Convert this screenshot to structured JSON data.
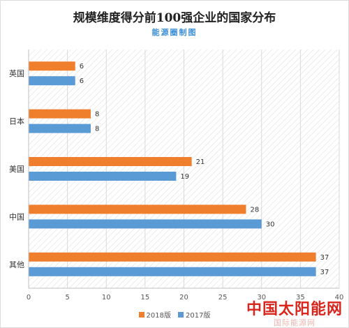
{
  "title": "规模维度得分前100强企业的国家分布",
  "subtitle": "能源圈制图",
  "watermark": {
    "main": "中国太阳能网",
    "sub": "国际能源网"
  },
  "legend": {
    "items": [
      {
        "label": "2018版",
        "color": "#f07f2d"
      },
      {
        "label": "2017版",
        "color": "#5b9bd5"
      }
    ]
  },
  "chart_data": {
    "type": "bar",
    "orientation": "horizontal",
    "categories": [
      "英国",
      "日本",
      "美国",
      "中国",
      "其他"
    ],
    "series": [
      {
        "name": "2018版",
        "values": [
          6,
          8,
          21,
          28,
          37
        ],
        "color": "#f07f2d"
      },
      {
        "name": "2017版",
        "values": [
          6,
          8,
          19,
          30,
          37
        ],
        "color": "#5b9bd5"
      }
    ],
    "xlim": [
      0,
      40
    ],
    "xticks": [
      0,
      5,
      10,
      15,
      20,
      25,
      30,
      35,
      40
    ],
    "grid": true,
    "legend_position": "bottom"
  }
}
